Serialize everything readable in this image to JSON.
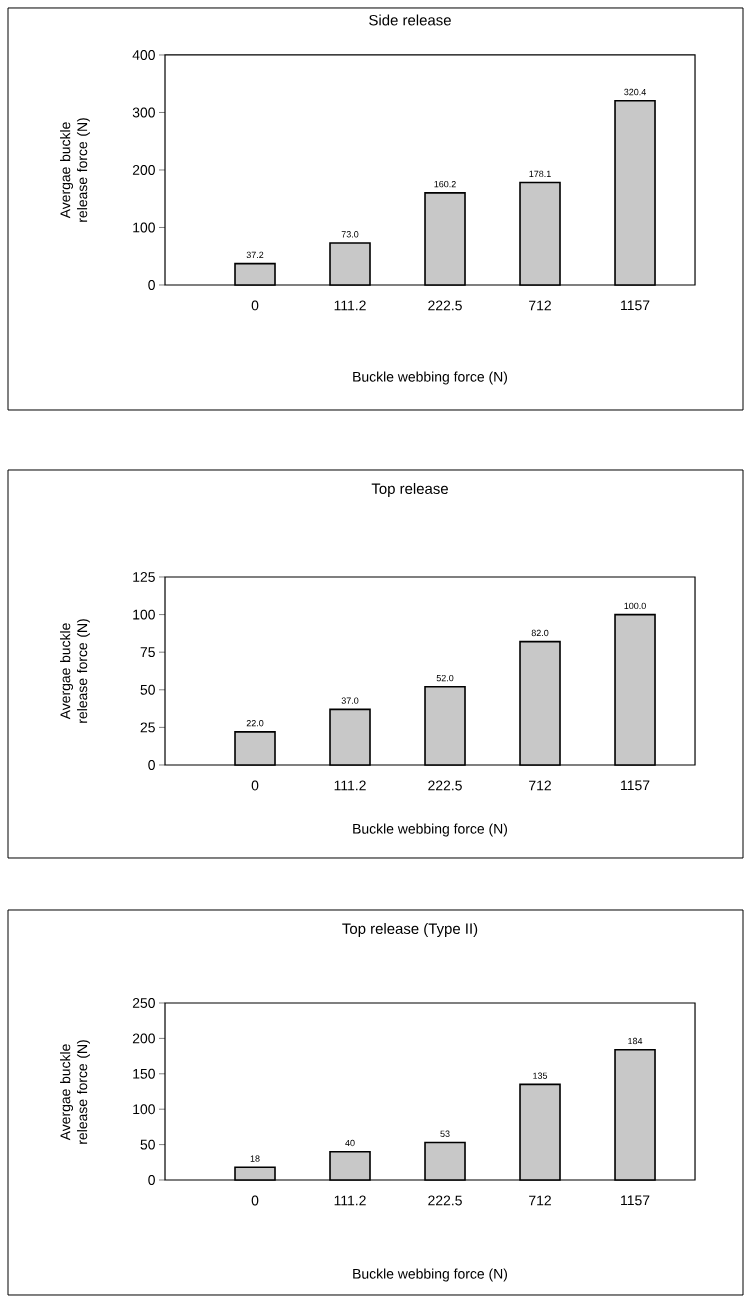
{
  "chart_data": [
    {
      "type": "bar",
      "title": "Side release",
      "xlabel": "Buckle webbing force (N)",
      "ylabel": "Avergae buckle release force (N)",
      "categories": [
        "0",
        "111.2",
        "222.5",
        "712",
        "1157"
      ],
      "values": [
        37.2,
        73.0,
        160.2,
        178.1,
        320.4
      ],
      "value_labels": [
        "37.2",
        "73.0",
        "160.2",
        "178.1",
        "320.4"
      ],
      "color": "#c8c8c8",
      "ylim": [
        0,
        400
      ],
      "yticks": [
        0,
        100,
        200,
        300,
        400
      ]
    },
    {
      "type": "bar",
      "title": "Top release",
      "xlabel": "Buckle webbing force (N)",
      "ylabel": "Avergae buckle release force (N)",
      "categories": [
        "0",
        "111.2",
        "222.5",
        "712",
        "1157"
      ],
      "values": [
        22.0,
        37.0,
        52.0,
        82.0,
        100.0
      ],
      "value_labels": [
        "22.0",
        "37.0",
        "52.0",
        "82.0",
        "100.0"
      ],
      "color": "#c8c8c8",
      "ylim": [
        0,
        125
      ],
      "yticks": [
        0,
        25,
        50,
        75,
        100,
        125
      ]
    },
    {
      "type": "bar",
      "title": "Top release (Type II)",
      "xlabel": "Buckle webbing force (N)",
      "ylabel": "Avergae buckle release force (N)",
      "categories": [
        "0",
        "111.2",
        "222.5",
        "712",
        "1157"
      ],
      "values": [
        18,
        40,
        53,
        135,
        184
      ],
      "value_labels": [
        "18",
        "40",
        "53",
        "135",
        "184"
      ],
      "color": "#c8c8c8",
      "ylim": [
        0,
        250
      ],
      "yticks": [
        0,
        50,
        100,
        150,
        200,
        250
      ]
    }
  ]
}
